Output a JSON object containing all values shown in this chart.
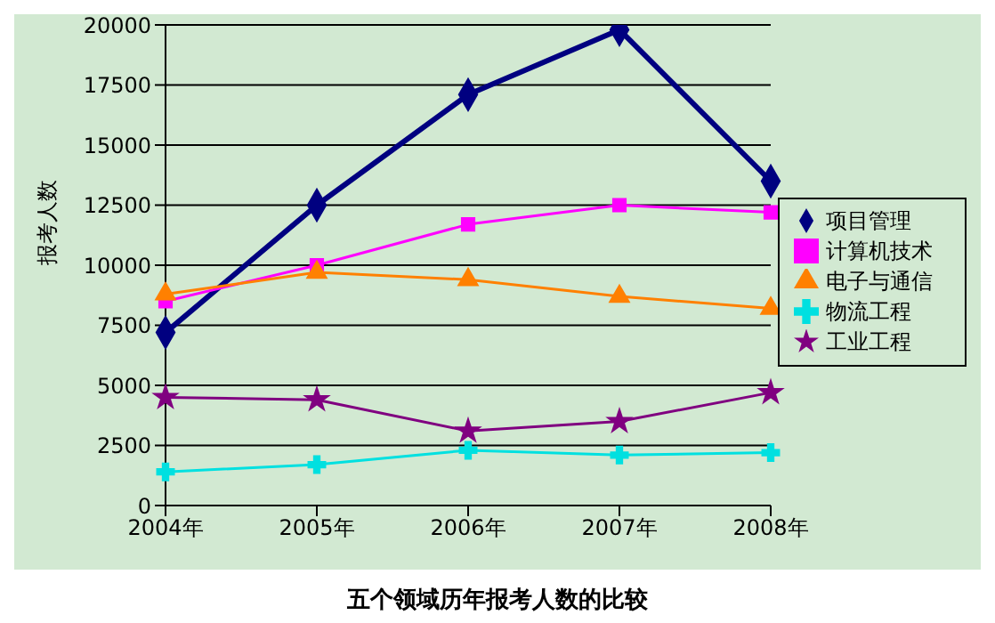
{
  "chart_data": {
    "type": "line",
    "title": "五个领域历年报考人数的比较",
    "ylabel": "报考人数",
    "categories": [
      "2004年",
      "2005年",
      "2006年",
      "2007年",
      "2008年"
    ],
    "series": [
      {
        "name": "项目管理",
        "color": "#000080",
        "marker": "diamond",
        "values": [
          7200,
          12500,
          17100,
          19800,
          13500
        ]
      },
      {
        "name": "计算机技术",
        "color": "#ff00ff",
        "marker": "square",
        "values": [
          8500,
          10000,
          11700,
          12500,
          12200
        ]
      },
      {
        "name": "电子与通信",
        "color": "#ff8000",
        "marker": "triangle",
        "values": [
          8800,
          9700,
          9400,
          8700,
          8200
        ]
      },
      {
        "name": "物流工程",
        "color": "#00e0e0",
        "marker": "cross",
        "values": [
          1400,
          1700,
          2300,
          2100,
          2200
        ]
      },
      {
        "name": "工业工程",
        "color": "#800080",
        "marker": "star",
        "values": [
          4500,
          4400,
          3100,
          3500,
          4700
        ]
      }
    ],
    "ylim": [
      0,
      20000
    ],
    "yticks": [
      0,
      2500,
      5000,
      7500,
      10000,
      12500,
      15000,
      17500,
      20000
    ],
    "grid": "y",
    "legend": "right"
  }
}
